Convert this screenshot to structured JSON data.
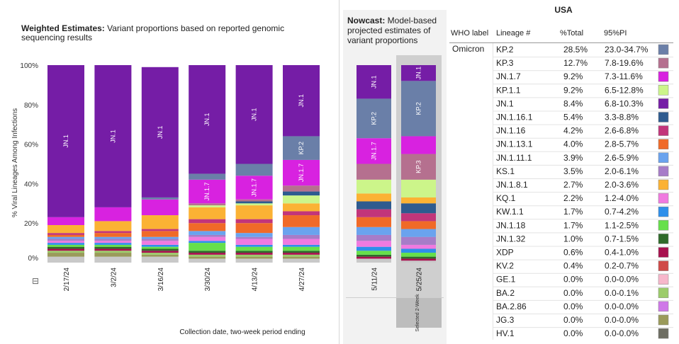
{
  "weighted": {
    "title_bold": "Weighted Estimates:",
    "title_rest_line1": " Variant proportions based on reported genomic",
    "title_line2": "sequencing results",
    "ylabel": "% Viral Lineages Among Infections",
    "xlabel": "Collection date, two-week period ending",
    "collapse_symbol": "⊟",
    "yticks": [
      "100%",
      "80%",
      "60%",
      "40%",
      "20%",
      "0%"
    ]
  },
  "nowcast": {
    "title_bold": "Nowcast:",
    "title_rest_line1": " Model-based",
    "title_line2": "projected estimates of",
    "title_line3": "variant proportions",
    "selected_label": "Selected 2-Week"
  },
  "table": {
    "title": "USA",
    "headers": [
      "WHO label",
      "Lineage #",
      "%Total",
      "95%PI"
    ],
    "who_label": "Omicron",
    "rows": [
      {
        "lineage": "KP.2",
        "total": "28.5%",
        "pi": "23.0-34.7%",
        "color": "#6a7fa8"
      },
      {
        "lineage": "KP.3",
        "total": "12.7%",
        "pi": "7.8-19.6%",
        "color": "#b5708f"
      },
      {
        "lineage": "JN.1.7",
        "total": "9.2%",
        "pi": "7.3-11.6%",
        "color": "#d822e0"
      },
      {
        "lineage": "KP.1.1",
        "total": "9.2%",
        "pi": "6.5-12.8%",
        "color": "#ccf58a"
      },
      {
        "lineage": "JN.1",
        "total": "8.4%",
        "pi": "6.8-10.3%",
        "color": "#751da6"
      },
      {
        "lineage": "JN.1.16.1",
        "total": "5.4%",
        "pi": "3.3-8.8%",
        "color": "#2e5b8f"
      },
      {
        "lineage": "JN.1.16",
        "total": "4.2%",
        "pi": "2.6-6.8%",
        "color": "#c2357a"
      },
      {
        "lineage": "JN.1.13.1",
        "total": "4.0%",
        "pi": "2.8-5.7%",
        "color": "#f06a28"
      },
      {
        "lineage": "JN.1.11.1",
        "total": "3.9%",
        "pi": "2.6-5.9%",
        "color": "#6aa3ee"
      },
      {
        "lineage": "KS.1",
        "total": "3.5%",
        "pi": "2.0-6.1%",
        "color": "#a77cc8"
      },
      {
        "lineage": "JN.1.8.1",
        "total": "2.7%",
        "pi": "2.0-3.6%",
        "color": "#fbb234"
      },
      {
        "lineage": "KQ.1",
        "total": "2.2%",
        "pi": "1.2-4.0%",
        "color": "#f07ae0"
      },
      {
        "lineage": "KW.1.1",
        "total": "1.7%",
        "pi": "0.7-4.2%",
        "color": "#2e8fea"
      },
      {
        "lineage": "JN.1.18",
        "total": "1.7%",
        "pi": "1.1-2.5%",
        "color": "#66e04a"
      },
      {
        "lineage": "JN.1.32",
        "total": "1.0%",
        "pi": "0.7-1.5%",
        "color": "#2f6a2a"
      },
      {
        "lineage": "XDP",
        "total": "0.6%",
        "pi": "0.4-1.0%",
        "color": "#a8104e"
      },
      {
        "lineage": "KV.2",
        "total": "0.4%",
        "pi": "0.2-0.7%",
        "color": "#d04a48"
      },
      {
        "lineage": "GE.1",
        "total": "0.0%",
        "pi": "0.0-0.0%",
        "color": "#f7b7cb"
      },
      {
        "lineage": "BA.2",
        "total": "0.0%",
        "pi": "0.0-0.1%",
        "color": "#9ccc6a"
      },
      {
        "lineage": "BA.2.86",
        "total": "0.0%",
        "pi": "0.0-0.0%",
        "color": "#cf78e8"
      },
      {
        "lineage": "JG.3",
        "total": "0.0%",
        "pi": "0.0-0.0%",
        "color": "#9a9a5a"
      },
      {
        "lineage": "HV.1",
        "total": "0.0%",
        "pi": "0.0-0.0%",
        "color": "#6e6e62"
      }
    ]
  },
  "chart_data": [
    {
      "type": "bar",
      "stacked": true,
      "title": "Weighted Estimates: Variant proportions based on reported genomic sequencing results",
      "xlabel": "Collection date, two-week period ending",
      "ylabel": "% Viral Lineages Among Infections",
      "ylim": [
        0,
        100
      ],
      "categories": [
        "2/17/24",
        "3/2/24",
        "3/16/24",
        "3/30/24",
        "4/13/24",
        "4/27/24"
      ],
      "series": [
        {
          "name": "Other",
          "color": "#c9c9c9",
          "values": [
            3,
            3,
            3,
            2,
            2,
            2
          ]
        },
        {
          "name": "JG.3",
          "color": "#9a9a5a",
          "values": [
            2,
            2,
            1,
            1,
            1,
            1
          ]
        },
        {
          "name": "BA.2",
          "color": "#9ccc6a",
          "values": [
            1,
            1,
            1,
            1,
            1,
            1
          ]
        },
        {
          "name": "XDP",
          "color": "#a8104e",
          "values": [
            1,
            1,
            1,
            1,
            1,
            1
          ]
        },
        {
          "name": "JN.1.32",
          "color": "#2f6a2a",
          "values": [
            1,
            1,
            1,
            1,
            1,
            1
          ]
        },
        {
          "name": "JN.1.18",
          "color": "#66e04a",
          "values": [
            1,
            1,
            1,
            4,
            2,
            2
          ]
        },
        {
          "name": "KW.1.1",
          "color": "#2e8fea",
          "values": [
            1,
            1,
            1,
            1,
            1,
            1
          ]
        },
        {
          "name": "KQ.1",
          "color": "#f07ae0",
          "values": [
            1,
            1,
            2,
            2,
            3,
            3
          ]
        },
        {
          "name": "KS.1",
          "color": "#a77cc8",
          "values": [
            1,
            1,
            1,
            1,
            1,
            2
          ]
        },
        {
          "name": "JN.1.11.1",
          "color": "#6aa3ee",
          "values": [
            1,
            1,
            1,
            2,
            2,
            4
          ]
        },
        {
          "name": "JN.1.13.1",
          "color": "#f06a28",
          "values": [
            1,
            2,
            3,
            4,
            5,
            6
          ]
        },
        {
          "name": "JN.1.16",
          "color": "#c2357a",
          "values": [
            1,
            1,
            1,
            2,
            2,
            2
          ]
        },
        {
          "name": "JN.1.8.1",
          "color": "#fbb234",
          "values": [
            4,
            5,
            7,
            6,
            7,
            4
          ]
        },
        {
          "name": "KP.1.1",
          "color": "#ccf58a",
          "values": [
            0,
            0,
            0,
            1,
            1,
            4
          ]
        },
        {
          "name": "JN.1.16.1",
          "color": "#2e5b8f",
          "values": [
            0,
            0,
            0,
            0,
            1,
            2
          ]
        },
        {
          "name": "KP.3",
          "color": "#b5708f",
          "values": [
            0,
            0,
            0,
            1,
            1,
            3
          ]
        },
        {
          "name": "JN.1.7",
          "color": "#d822e0",
          "values": [
            4,
            7,
            8,
            12,
            12,
            13
          ]
        },
        {
          "name": "KP.2",
          "color": "#6a7fa8",
          "values": [
            0,
            0,
            1,
            3,
            6,
            12
          ]
        },
        {
          "name": "JN.1",
          "color": "#751da6",
          "values": [
            77,
            72,
            66,
            55,
            50,
            36
          ]
        }
      ],
      "bar_labels": [
        [
          "JN.1"
        ],
        [
          "JN.1"
        ],
        [
          "JN.1"
        ],
        [
          "JN.1",
          "JN.1.7"
        ],
        [
          "JN.1",
          "JN.1.7"
        ],
        [
          "JN.1",
          "KP.2",
          "JN.1.7"
        ]
      ],
      "yticks": [
        0,
        20,
        40,
        60,
        80,
        100
      ]
    },
    {
      "type": "bar",
      "stacked": true,
      "title": "Nowcast: Model-based projected estimates of variant proportions",
      "ylim": [
        0,
        100
      ],
      "categories": [
        "5/11/24",
        "5/25/24"
      ],
      "selected": "5/25/24",
      "series": [
        {
          "name": "Other",
          "color": "#c9c9c9",
          "values": [
            2,
            1
          ]
        },
        {
          "name": "XDP",
          "color": "#a8104e",
          "values": [
            1,
            1
          ]
        },
        {
          "name": "JN.1.32",
          "color": "#2f6a2a",
          "values": [
            1,
            1
          ]
        },
        {
          "name": "JN.1.18",
          "color": "#66e04a",
          "values": [
            2,
            2
          ]
        },
        {
          "name": "KW.1.1",
          "color": "#2e8fea",
          "values": [
            2,
            2
          ]
        },
        {
          "name": "KQ.1",
          "color": "#f07ae0",
          "values": [
            3,
            2
          ]
        },
        {
          "name": "KS.1",
          "color": "#a77cc8",
          "values": [
            3,
            4
          ]
        },
        {
          "name": "JN.1.11.1",
          "color": "#6aa3ee",
          "values": [
            4,
            4
          ]
        },
        {
          "name": "JN.1.13.1",
          "color": "#f06a28",
          "values": [
            5,
            4
          ]
        },
        {
          "name": "JN.1.16",
          "color": "#c2357a",
          "values": [
            4,
            4
          ]
        },
        {
          "name": "JN.1.16.1",
          "color": "#2e5b8f",
          "values": [
            4,
            5
          ]
        },
        {
          "name": "JN.1.8.1",
          "color": "#fbb234",
          "values": [
            4,
            3
          ]
        },
        {
          "name": "KP.1.1",
          "color": "#ccf58a",
          "values": [
            7,
            9
          ]
        },
        {
          "name": "KP.3",
          "color": "#b5708f",
          "values": [
            8,
            13
          ]
        },
        {
          "name": "JN.1.7",
          "color": "#d822e0",
          "values": [
            13,
            9
          ]
        },
        {
          "name": "KP.2",
          "color": "#6a7fa8",
          "values": [
            20,
            28
          ]
        },
        {
          "name": "JN.1",
          "color": "#751da6",
          "values": [
            17,
            8
          ]
        }
      ],
      "bar_labels": [
        [
          "JN.1",
          "KP.2",
          "JN.1.7"
        ],
        [
          "JN.1",
          "KP.2",
          "KP.3"
        ]
      ]
    }
  ]
}
